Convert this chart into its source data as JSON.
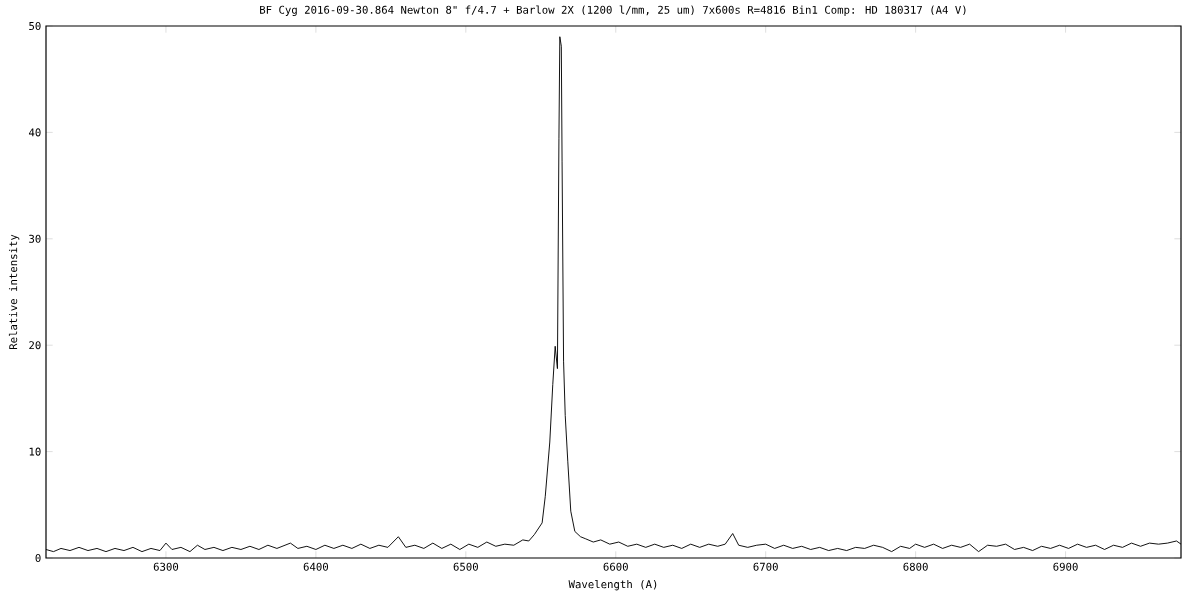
{
  "chart_data": {
    "type": "line",
    "title": "BF Cyg  2016-09-30.864   Newton 8\" f/4.7 + Barlow 2X (1200 l/mm, 25 um)   7x600s   R=4816  Bin1  Comp: HD 180317 (A4 V)",
    "xlabel": "Wavelength (A)",
    "ylabel": "Relative intensity",
    "xlim": [
      6220,
      6977
    ],
    "ylim": [
      0,
      50
    ],
    "xticks": [
      6300,
      6400,
      6500,
      6600,
      6700,
      6800,
      6900
    ],
    "yticks": [
      0,
      10,
      20,
      30,
      40,
      50
    ],
    "color": "#000000",
    "x": [
      6220,
      6225,
      6230,
      6236,
      6242,
      6248,
      6254,
      6260,
      6266,
      6272,
      6278,
      6284,
      6290,
      6296,
      6300,
      6304,
      6310,
      6316,
      6321,
      6326,
      6332,
      6338,
      6344,
      6350,
      6356,
      6362,
      6368,
      6374,
      6383,
      6388,
      6394,
      6400,
      6406,
      6412,
      6418,
      6424,
      6430,
      6436,
      6442,
      6448,
      6455,
      6460,
      6466,
      6472,
      6478,
      6484,
      6490,
      6496,
      6502,
      6508,
      6514,
      6520,
      6526,
      6532,
      6538,
      6542,
      6545.7,
      6550.9,
      6553,
      6556,
      6558,
      6559.6,
      6561.1,
      6562.1,
      6562.7,
      6563.7,
      6564.2,
      6565.2,
      6566.3,
      6568,
      6570,
      6572.7,
      6576.5,
      6580,
      6585,
      6590,
      6596,
      6602,
      6608,
      6614,
      6620,
      6626,
      6632,
      6638,
      6644,
      6650,
      6656,
      6662,
      6668,
      6673,
      6678,
      6682,
      6688,
      6694,
      6700,
      6706,
      6712,
      6718,
      6724,
      6730,
      6736,
      6742,
      6748,
      6754,
      6760,
      6766,
      6772,
      6778,
      6784,
      6790,
      6796,
      6800,
      6806,
      6812,
      6818,
      6824,
      6830,
      6836,
      6842,
      6848,
      6854,
      6860,
      6866,
      6872,
      6878,
      6884,
      6890,
      6896,
      6902,
      6908,
      6914,
      6920,
      6926,
      6932,
      6938,
      6944,
      6950,
      6956,
      6962,
      6968,
      6974,
      6977
    ],
    "values": [
      0.8,
      0.6,
      0.9,
      0.7,
      1.0,
      0.7,
      0.9,
      0.6,
      0.9,
      0.7,
      1.0,
      0.6,
      0.9,
      0.7,
      1.4,
      0.8,
      1.0,
      0.6,
      1.2,
      0.8,
      1.0,
      0.7,
      1.0,
      0.8,
      1.1,
      0.8,
      1.2,
      0.9,
      1.4,
      0.9,
      1.1,
      0.8,
      1.2,
      0.9,
      1.2,
      0.9,
      1.3,
      0.9,
      1.2,
      1.0,
      2.0,
      1.0,
      1.2,
      0.9,
      1.4,
      0.9,
      1.3,
      0.8,
      1.3,
      1.0,
      1.5,
      1.1,
      1.3,
      1.2,
      1.7,
      1.6,
      2.2,
      3.3,
      5.8,
      10.9,
      16.3,
      19.9,
      17.8,
      39.4,
      49,
      48.1,
      37.3,
      18.5,
      13.4,
      9.1,
      4.4,
      2.5,
      2.0,
      1.8,
      1.5,
      1.7,
      1.3,
      1.5,
      1.1,
      1.3,
      1.0,
      1.3,
      1.0,
      1.2,
      0.9,
      1.3,
      1.0,
      1.3,
      1.1,
      1.3,
      2.3,
      1.2,
      1.0,
      1.2,
      1.3,
      0.9,
      1.2,
      0.9,
      1.1,
      0.8,
      1.0,
      0.7,
      0.9,
      0.7,
      1.0,
      0.9,
      1.2,
      1.0,
      0.6,
      1.1,
      0.9,
      1.3,
      1.0,
      1.3,
      0.9,
      1.2,
      1.0,
      1.3,
      0.6,
      1.2,
      1.1,
      1.3,
      0.8,
      1.0,
      0.7,
      1.1,
      0.9,
      1.2,
      0.9,
      1.3,
      1.0,
      1.2,
      0.8,
      1.2,
      1.0,
      1.4,
      1.1,
      1.4,
      1.3,
      1.4,
      1.6,
      1.3
    ]
  }
}
